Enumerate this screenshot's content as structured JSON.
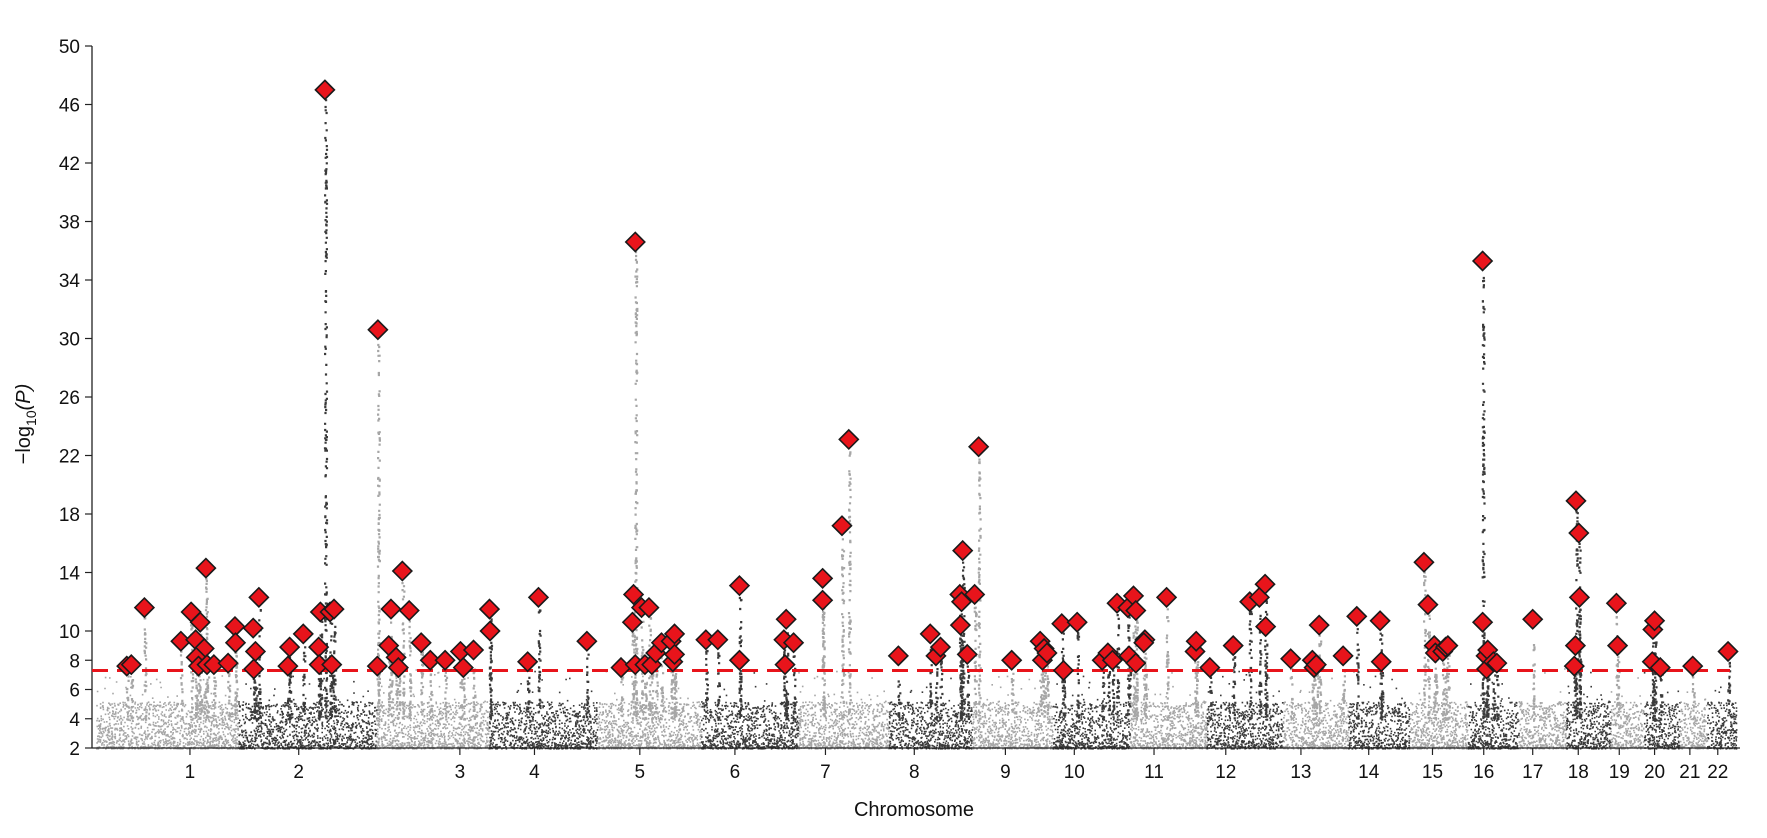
{
  "chart_data": {
    "type": "scatter",
    "subtype": "manhattan",
    "xlabel": "Chromosome",
    "ylabel_main": "−log",
    "ylabel_sub": "10",
    "ylabel_tail": "(P)",
    "ylim": [
      2,
      50
    ],
    "yticks": [
      2,
      4,
      6,
      8,
      10,
      14,
      18,
      22,
      26,
      30,
      34,
      38,
      42,
      46,
      50
    ],
    "significance_threshold": 7.3,
    "threshold_color": "#e8141b",
    "marker_color": "#e8141b",
    "chromosome_colors": [
      "#a6a6a6",
      "#3a3a3a"
    ],
    "chromosomes": [
      {
        "label": "1",
        "start": 0,
        "end": 249
      },
      {
        "label": "2",
        "start": 249,
        "end": 492
      },
      {
        "label": "3",
        "start": 492,
        "end": 690
      },
      {
        "label": "4",
        "start": 690,
        "end": 880
      },
      {
        "label": "5",
        "start": 880,
        "end": 1062
      },
      {
        "label": "6",
        "start": 1062,
        "end": 1233
      },
      {
        "label": "7",
        "start": 1233,
        "end": 1392
      },
      {
        "label": "8",
        "start": 1392,
        "end": 1538
      },
      {
        "label": "9",
        "start": 1538,
        "end": 1679
      },
      {
        "label": "10",
        "start": 1679,
        "end": 1815
      },
      {
        "label": "11",
        "start": 1815,
        "end": 1950
      },
      {
        "label": "12",
        "start": 1950,
        "end": 2084
      },
      {
        "label": "13",
        "start": 2084,
        "end": 2199
      },
      {
        "label": "14",
        "start": 2199,
        "end": 2306
      },
      {
        "label": "15",
        "start": 2306,
        "end": 2408
      },
      {
        "label": "16",
        "start": 2408,
        "end": 2498
      },
      {
        "label": "17",
        "start": 2498,
        "end": 2581
      },
      {
        "label": "18",
        "start": 2581,
        "end": 2659
      },
      {
        "label": "19",
        "start": 2659,
        "end": 2718
      },
      {
        "label": "20",
        "start": 2718,
        "end": 2781
      },
      {
        "label": "21",
        "start": 2781,
        "end": 2829
      },
      {
        "label": "22",
        "start": 2829,
        "end": 2880
      }
    ],
    "tick_positions": [
      {
        "label": "1",
        "pos": 165
      },
      {
        "label": "2",
        "pos": 356
      },
      {
        "label": "3",
        "pos": 639
      },
      {
        "label": "4",
        "pos": 770
      },
      {
        "label": "5",
        "pos": 955
      },
      {
        "label": "6",
        "pos": 1122
      },
      {
        "label": "7",
        "pos": 1281
      },
      {
        "label": "8",
        "pos": 1437
      },
      {
        "label": "9",
        "pos": 1597
      },
      {
        "label": "10",
        "pos": 1718
      },
      {
        "label": "11",
        "pos": 1858
      },
      {
        "label": "12",
        "pos": 1984
      },
      {
        "label": "13",
        "pos": 2116
      },
      {
        "label": "14",
        "pos": 2235
      },
      {
        "label": "15",
        "pos": 2347
      },
      {
        "label": "16",
        "pos": 2437
      },
      {
        "label": "17",
        "pos": 2523
      },
      {
        "label": "18",
        "pos": 2603
      },
      {
        "label": "19",
        "pos": 2675
      },
      {
        "label": "20",
        "pos": 2737
      },
      {
        "label": "21",
        "pos": 2799
      },
      {
        "label": "22",
        "pos": 2848
      }
    ],
    "lead_variants": [
      {
        "x": 54,
        "y": 7.6
      },
      {
        "x": 62,
        "y": 7.7
      },
      {
        "x": 85,
        "y": 11.6
      },
      {
        "x": 149,
        "y": 9.3
      },
      {
        "x": 167,
        "y": 11.3
      },
      {
        "x": 175,
        "y": 9.4
      },
      {
        "x": 183,
        "y": 10.6
      },
      {
        "x": 190,
        "y": 8.8
      },
      {
        "x": 193,
        "y": 14.3
      },
      {
        "x": 176,
        "y": 8.2
      },
      {
        "x": 180,
        "y": 7.6
      },
      {
        "x": 195,
        "y": 7.7
      },
      {
        "x": 207,
        "y": 7.7
      },
      {
        "x": 232,
        "y": 7.8
      },
      {
        "x": 244,
        "y": 10.3
      },
      {
        "x": 245,
        "y": 9.2
      },
      {
        "x": 276,
        "y": 10.2
      },
      {
        "x": 280,
        "y": 8.6
      },
      {
        "x": 277,
        "y": 7.4
      },
      {
        "x": 286,
        "y": 12.3
      },
      {
        "x": 340,
        "y": 8.9
      },
      {
        "x": 337,
        "y": 7.6
      },
      {
        "x": 364,
        "y": 9.8
      },
      {
        "x": 391,
        "y": 8.9
      },
      {
        "x": 394,
        "y": 11.3
      },
      {
        "x": 392,
        "y": 7.7
      },
      {
        "x": 402,
        "y": 47
      },
      {
        "x": 411,
        "y": 11.3
      },
      {
        "x": 418,
        "y": 11.5
      },
      {
        "x": 414,
        "y": 7.7
      },
      {
        "x": 495,
        "y": 30.6
      },
      {
        "x": 494,
        "y": 7.6
      },
      {
        "x": 518,
        "y": 11.5
      },
      {
        "x": 514,
        "y": 9
      },
      {
        "x": 527,
        "y": 8.2
      },
      {
        "x": 531,
        "y": 7.5
      },
      {
        "x": 538,
        "y": 14.1
      },
      {
        "x": 550,
        "y": 11.4
      },
      {
        "x": 571,
        "y": 9.2
      },
      {
        "x": 587,
        "y": 8
      },
      {
        "x": 613,
        "y": 8
      },
      {
        "x": 640,
        "y": 8.6
      },
      {
        "x": 645,
        "y": 7.5
      },
      {
        "x": 663,
        "y": 8.7
      },
      {
        "x": 691,
        "y": 11.5
      },
      {
        "x": 692,
        "y": 10
      },
      {
        "x": 758,
        "y": 7.9
      },
      {
        "x": 777,
        "y": 12.3
      },
      {
        "x": 862,
        "y": 9.3
      },
      {
        "x": 922,
        "y": 7.5
      },
      {
        "x": 947,
        "y": 36.6
      },
      {
        "x": 944,
        "y": 12.5
      },
      {
        "x": 942,
        "y": 10.6
      },
      {
        "x": 958,
        "y": 11.6
      },
      {
        "x": 971,
        "y": 11.6
      },
      {
        "x": 947,
        "y": 7.7
      },
      {
        "x": 964,
        "y": 7.7
      },
      {
        "x": 976,
        "y": 7.7
      },
      {
        "x": 983,
        "y": 8.5
      },
      {
        "x": 993,
        "y": 9.2
      },
      {
        "x": 1010,
        "y": 9.3
      },
      {
        "x": 1013,
        "y": 7.9
      },
      {
        "x": 1016,
        "y": 9.8
      },
      {
        "x": 1016,
        "y": 8.4
      },
      {
        "x": 1071,
        "y": 9.4
      },
      {
        "x": 1092,
        "y": 9.4
      },
      {
        "x": 1130,
        "y": 13.1
      },
      {
        "x": 1130,
        "y": 8
      },
      {
        "x": 1212,
        "y": 10.8
      },
      {
        "x": 1208,
        "y": 9.4
      },
      {
        "x": 1225,
        "y": 9.2
      },
      {
        "x": 1210,
        "y": 7.7
      },
      {
        "x": 1276,
        "y": 13.6
      },
      {
        "x": 1276,
        "y": 12.1
      },
      {
        "x": 1310,
        "y": 17.2
      },
      {
        "x": 1322,
        "y": 23.1
      },
      {
        "x": 1409,
        "y": 8.3
      },
      {
        "x": 1465,
        "y": 9.8
      },
      {
        "x": 1475,
        "y": 8.3
      },
      {
        "x": 1483,
        "y": 8.9
      },
      {
        "x": 1517,
        "y": 12.5
      },
      {
        "x": 1520,
        "y": 12
      },
      {
        "x": 1518,
        "y": 10.4
      },
      {
        "x": 1522,
        "y": 15.5
      },
      {
        "x": 1530,
        "y": 8.4
      },
      {
        "x": 1543,
        "y": 12.5
      },
      {
        "x": 1550,
        "y": 22.6
      },
      {
        "x": 1608,
        "y": 8
      },
      {
        "x": 1658,
        "y": 9.3
      },
      {
        "x": 1662,
        "y": 8
      },
      {
        "x": 1665,
        "y": 8.8
      },
      {
        "x": 1670,
        "y": 8.5
      },
      {
        "x": 1696,
        "y": 10.5
      },
      {
        "x": 1699,
        "y": 7.3
      },
      {
        "x": 1723,
        "y": 10.6
      },
      {
        "x": 1767,
        "y": 8
      },
      {
        "x": 1777,
        "y": 8.5
      },
      {
        "x": 1785,
        "y": 8
      },
      {
        "x": 1793,
        "y": 11.9
      },
      {
        "x": 1814,
        "y": 8.3
      },
      {
        "x": 1812,
        "y": 11.6
      },
      {
        "x": 1822,
        "y": 12.4
      },
      {
        "x": 1826,
        "y": 11.4
      },
      {
        "x": 1826,
        "y": 7.8
      },
      {
        "x": 1842,
        "y": 9.4
      },
      {
        "x": 1840,
        "y": 9.2
      },
      {
        "x": 1880,
        "y": 12.3
      },
      {
        "x": 1930,
        "y": 8.6
      },
      {
        "x": 1932,
        "y": 9.3
      },
      {
        "x": 1956,
        "y": 7.5
      },
      {
        "x": 1997,
        "y": 9
      },
      {
        "x": 2026,
        "y": 12
      },
      {
        "x": 2043,
        "y": 12.3
      },
      {
        "x": 2053,
        "y": 13.2
      },
      {
        "x": 2054,
        "y": 10.3
      },
      {
        "x": 2098,
        "y": 8.1
      },
      {
        "x": 2136,
        "y": 8
      },
      {
        "x": 2139,
        "y": 7.5
      },
      {
        "x": 2143,
        "y": 7.7
      },
      {
        "x": 2148,
        "y": 10.4
      },
      {
        "x": 2190,
        "y": 8.3
      },
      {
        "x": 2214,
        "y": 11
      },
      {
        "x": 2255,
        "y": 10.7
      },
      {
        "x": 2257,
        "y": 7.9
      },
      {
        "x": 2332,
        "y": 14.7
      },
      {
        "x": 2339,
        "y": 11.8
      },
      {
        "x": 2350,
        "y": 9
      },
      {
        "x": 2352,
        "y": 8.5
      },
      {
        "x": 2365,
        "y": 8.6
      },
      {
        "x": 2370,
        "y": 8.9
      },
      {
        "x": 2374,
        "y": 9
      },
      {
        "x": 2435,
        "y": 35.3
      },
      {
        "x": 2435,
        "y": 10.6
      },
      {
        "x": 2441,
        "y": 8.3
      },
      {
        "x": 2444,
        "y": 8.7
      },
      {
        "x": 2442,
        "y": 7.4
      },
      {
        "x": 2454,
        "y": 7.9
      },
      {
        "x": 2460,
        "y": 7.8
      },
      {
        "x": 2523,
        "y": 10.8
      },
      {
        "x": 2599,
        "y": 18.9
      },
      {
        "x": 2604,
        "y": 16.7
      },
      {
        "x": 2605,
        "y": 12.3
      },
      {
        "x": 2598,
        "y": 9
      },
      {
        "x": 2596,
        "y": 7.6
      },
      {
        "x": 2670,
        "y": 11.9
      },
      {
        "x": 2672,
        "y": 9
      },
      {
        "x": 2734,
        "y": 10.1
      },
      {
        "x": 2737,
        "y": 10.7
      },
      {
        "x": 2733,
        "y": 7.9
      },
      {
        "x": 2747,
        "y": 7.5
      },
      {
        "x": 2804,
        "y": 7.6
      },
      {
        "x": 2866,
        "y": 8.6
      }
    ]
  }
}
